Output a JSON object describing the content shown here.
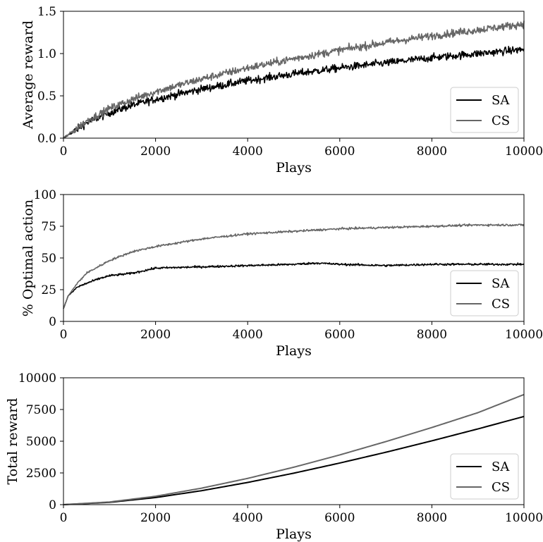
{
  "chart_data": [
    {
      "type": "line",
      "xlabel": "Plays",
      "ylabel": "Average reward",
      "xlim": [
        0,
        10000
      ],
      "ylim": [
        0,
        1.5
      ],
      "xticks": [
        "0",
        "2000",
        "4000",
        "6000",
        "8000",
        "10000"
      ],
      "yticks": [
        "0.0",
        "0.5",
        "1.0",
        "1.5"
      ],
      "legend_position": "lower-right",
      "noise": 0.045,
      "series": [
        {
          "name": "SA",
          "color": "#000000",
          "x": [
            0,
            500,
            1000,
            1500,
            2000,
            3000,
            4000,
            5000,
            6000,
            7000,
            8000,
            9000,
            10000
          ],
          "y": [
            0.0,
            0.18,
            0.3,
            0.39,
            0.46,
            0.58,
            0.68,
            0.76,
            0.83,
            0.89,
            0.95,
            1.0,
            1.05
          ]
        },
        {
          "name": "CS",
          "color": "#666666",
          "x": [
            0,
            500,
            1000,
            1500,
            2000,
            3000,
            4000,
            5000,
            6000,
            7000,
            8000,
            9000,
            10000
          ],
          "y": [
            0.0,
            0.2,
            0.35,
            0.46,
            0.55,
            0.7,
            0.83,
            0.94,
            1.04,
            1.13,
            1.21,
            1.28,
            1.35
          ]
        }
      ]
    },
    {
      "type": "line",
      "xlabel": "Plays",
      "ylabel": "% Optimal action",
      "xlim": [
        0,
        10000
      ],
      "ylim": [
        0,
        100
      ],
      "xticks": [
        "0",
        "2000",
        "4000",
        "6000",
        "8000",
        "10000"
      ],
      "yticks": [
        "0",
        "25",
        "50",
        "75",
        "100"
      ],
      "legend_position": "lower-right",
      "noise": 0.8,
      "series": [
        {
          "name": "SA",
          "color": "#000000",
          "x": [
            0,
            100,
            300,
            500,
            800,
            1000,
            1500,
            2000,
            3000,
            4000,
            5000,
            5500,
            6000,
            7000,
            8000,
            9000,
            10000
          ],
          "y": [
            10,
            20,
            27,
            30,
            34,
            36,
            38,
            42,
            43,
            44,
            45,
            46,
            45,
            44,
            45,
            45,
            45
          ]
        },
        {
          "name": "CS",
          "color": "#666666",
          "x": [
            0,
            100,
            300,
            500,
            800,
            1000,
            1500,
            2000,
            3000,
            4000,
            5000,
            6000,
            7000,
            8000,
            9000,
            10000
          ],
          "y": [
            10,
            20,
            30,
            38,
            44,
            48,
            55,
            59,
            65,
            69,
            71,
            73,
            74,
            75,
            76,
            76
          ]
        }
      ]
    },
    {
      "type": "line",
      "xlabel": "Plays",
      "ylabel": "Total reward",
      "xlim": [
        0,
        10000
      ],
      "ylim": [
        0,
        10000
      ],
      "xticks": [
        "0",
        "2000",
        "4000",
        "6000",
        "8000",
        "10000"
      ],
      "yticks": [
        "0",
        "2500",
        "5000",
        "7500",
        "10000"
      ],
      "legend_position": "lower-right",
      "noise": 0,
      "series": [
        {
          "name": "SA",
          "color": "#000000",
          "x": [
            0,
            1000,
            2000,
            3000,
            4000,
            5000,
            6000,
            7000,
            8000,
            9000,
            10000
          ],
          "y": [
            0,
            180,
            560,
            1100,
            1750,
            2480,
            3280,
            4130,
            5030,
            5970,
            6950
          ]
        },
        {
          "name": "CS",
          "color": "#666666",
          "x": [
            0,
            1000,
            2000,
            3000,
            4000,
            5000,
            6000,
            7000,
            8000,
            9000,
            10000
          ],
          "y": [
            0,
            210,
            660,
            1300,
            2070,
            2950,
            3920,
            4970,
            6080,
            7250,
            8680
          ]
        }
      ]
    }
  ]
}
